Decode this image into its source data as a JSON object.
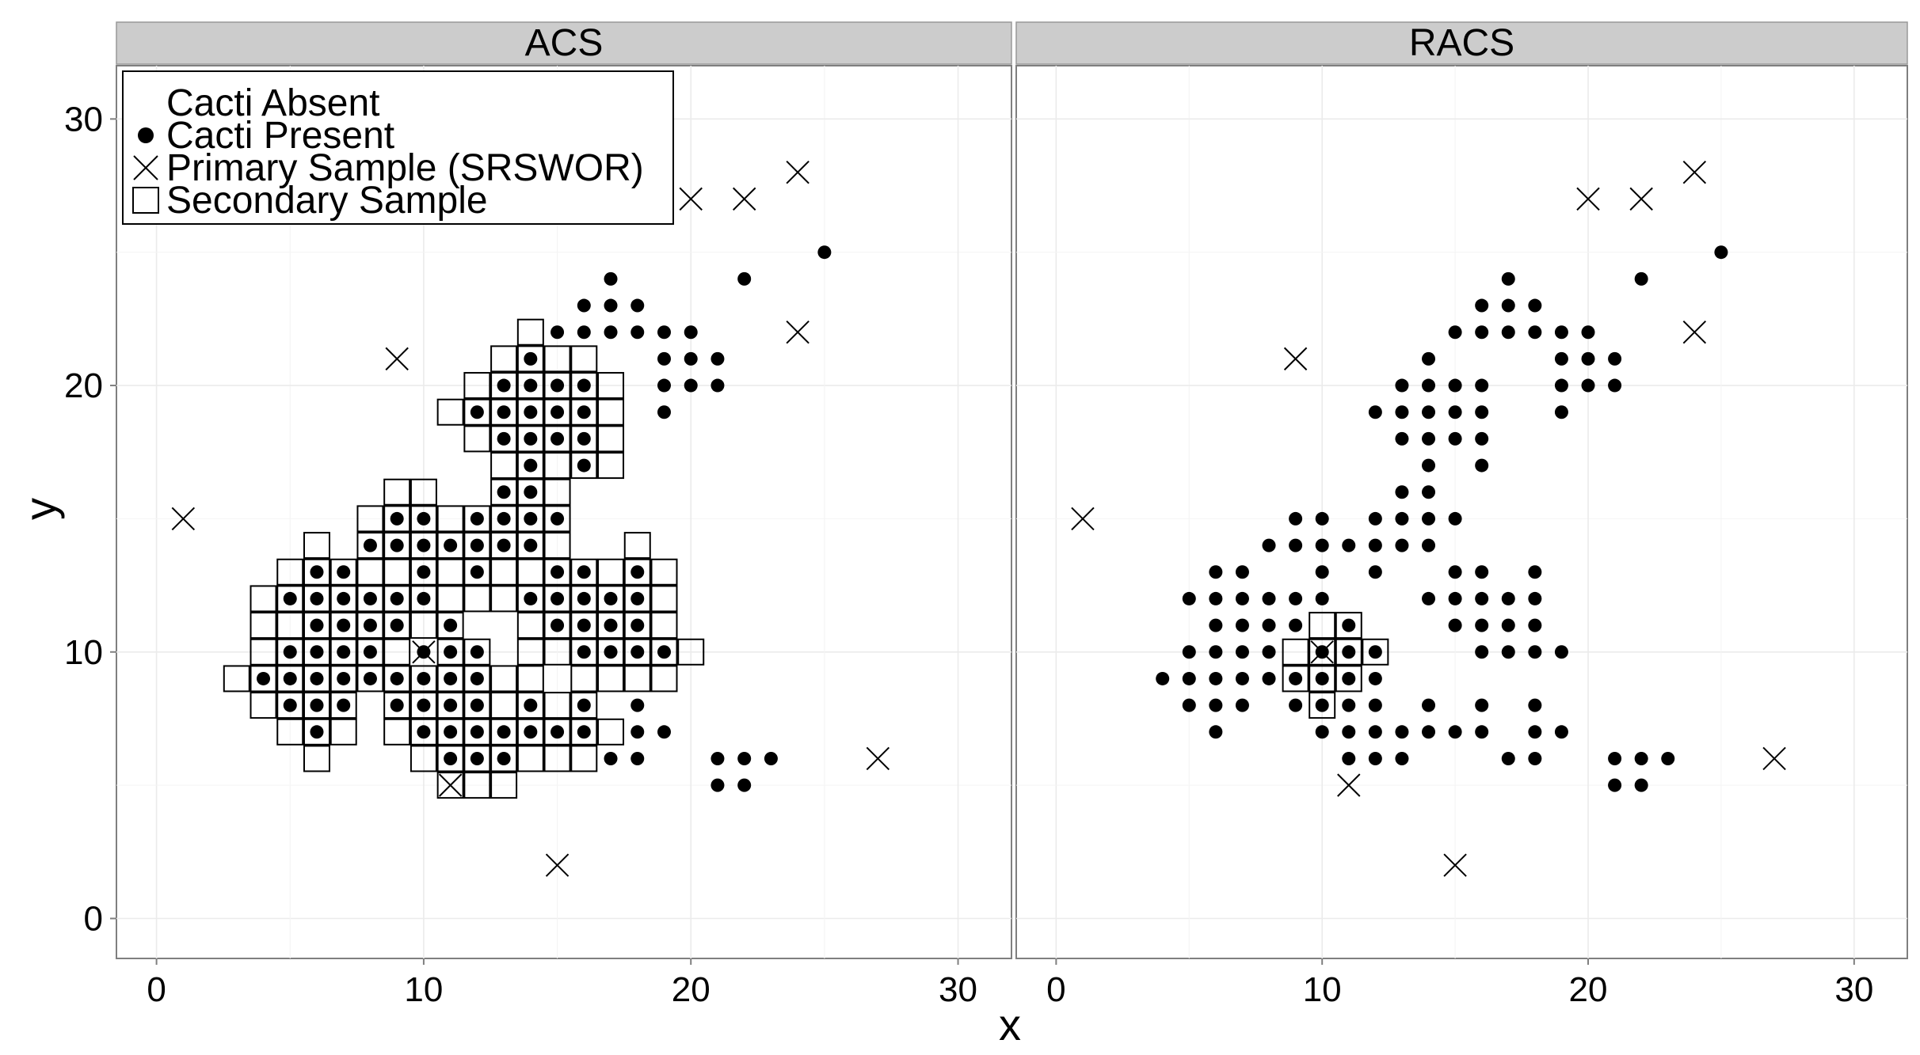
{
  "chart_data": {
    "type": "scatter",
    "facets": [
      "ACS",
      "RACS"
    ],
    "xlabel": "x",
    "ylabel": "y",
    "xlim": [
      -1.5,
      32
    ],
    "ylim": [
      -1.5,
      32
    ],
    "x_ticks": [
      0,
      10,
      20,
      30
    ],
    "y_ticks": [
      0,
      10,
      20,
      30
    ],
    "grid": true,
    "legend": {
      "placement": "top-left",
      "entries": [
        {
          "label": "Cacti Absent",
          "shape": "none"
        },
        {
          "label": "Cacti Present",
          "shape": "filled-circle"
        },
        {
          "label": "Primary Sample (SRSWOR)",
          "shape": "cross"
        },
        {
          "label": "Secondary Sample",
          "shape": "open-square"
        }
      ]
    },
    "cacti_present": [
      [
        4,
        9
      ],
      [
        5,
        8
      ],
      [
        5,
        9
      ],
      [
        5,
        10
      ],
      [
        5,
        12
      ],
      [
        6,
        7
      ],
      [
        6,
        8
      ],
      [
        6,
        9
      ],
      [
        6,
        10
      ],
      [
        6,
        11
      ],
      [
        6,
        12
      ],
      [
        6,
        13
      ],
      [
        7,
        8
      ],
      [
        7,
        9
      ],
      [
        7,
        10
      ],
      [
        7,
        11
      ],
      [
        7,
        12
      ],
      [
        7,
        13
      ],
      [
        8,
        9
      ],
      [
        8,
        10
      ],
      [
        8,
        11
      ],
      [
        8,
        12
      ],
      [
        8,
        14
      ],
      [
        9,
        8
      ],
      [
        9,
        9
      ],
      [
        9,
        11
      ],
      [
        9,
        12
      ],
      [
        9,
        14
      ],
      [
        9,
        15
      ],
      [
        10,
        7
      ],
      [
        10,
        8
      ],
      [
        10,
        9
      ],
      [
        10,
        10
      ],
      [
        10,
        12
      ],
      [
        10,
        13
      ],
      [
        10,
        14
      ],
      [
        10,
        15
      ],
      [
        11,
        6
      ],
      [
        11,
        7
      ],
      [
        11,
        8
      ],
      [
        11,
        9
      ],
      [
        11,
        10
      ],
      [
        11,
        11
      ],
      [
        11,
        14
      ],
      [
        12,
        6
      ],
      [
        12,
        7
      ],
      [
        12,
        8
      ],
      [
        12,
        9
      ],
      [
        12,
        10
      ],
      [
        12,
        13
      ],
      [
        12,
        14
      ],
      [
        12,
        15
      ],
      [
        12,
        19
      ],
      [
        13,
        6
      ],
      [
        13,
        7
      ],
      [
        13,
        14
      ],
      [
        13,
        15
      ],
      [
        13,
        16
      ],
      [
        13,
        18
      ],
      [
        13,
        19
      ],
      [
        13,
        20
      ],
      [
        14,
        7
      ],
      [
        14,
        8
      ],
      [
        14,
        12
      ],
      [
        14,
        14
      ],
      [
        14,
        15
      ],
      [
        14,
        16
      ],
      [
        14,
        17
      ],
      [
        14,
        18
      ],
      [
        14,
        19
      ],
      [
        14,
        20
      ],
      [
        14,
        21
      ],
      [
        15,
        7
      ],
      [
        15,
        11
      ],
      [
        15,
        12
      ],
      [
        15,
        13
      ],
      [
        15,
        15
      ],
      [
        15,
        18
      ],
      [
        15,
        19
      ],
      [
        15,
        20
      ],
      [
        15,
        22
      ],
      [
        16,
        7
      ],
      [
        16,
        8
      ],
      [
        16,
        10
      ],
      [
        16,
        11
      ],
      [
        16,
        12
      ],
      [
        16,
        13
      ],
      [
        16,
        17
      ],
      [
        16,
        18
      ],
      [
        16,
        19
      ],
      [
        16,
        20
      ],
      [
        16,
        22
      ],
      [
        16,
        23
      ],
      [
        17,
        6
      ],
      [
        17,
        10
      ],
      [
        17,
        11
      ],
      [
        17,
        12
      ],
      [
        17,
        22
      ],
      [
        17,
        23
      ],
      [
        17,
        24
      ],
      [
        18,
        6
      ],
      [
        18,
        7
      ],
      [
        18,
        8
      ],
      [
        18,
        10
      ],
      [
        18,
        11
      ],
      [
        18,
        12
      ],
      [
        18,
        13
      ],
      [
        18,
        22
      ],
      [
        18,
        23
      ],
      [
        19,
        7
      ],
      [
        19,
        10
      ],
      [
        19,
        19
      ],
      [
        19,
        20
      ],
      [
        19,
        21
      ],
      [
        19,
        22
      ],
      [
        20,
        20
      ],
      [
        20,
        21
      ],
      [
        20,
        22
      ],
      [
        21,
        5
      ],
      [
        21,
        6
      ],
      [
        21,
        20
      ],
      [
        21,
        21
      ],
      [
        22,
        5
      ],
      [
        22,
        6
      ],
      [
        22,
        24
      ],
      [
        23,
        6
      ],
      [
        25,
        25
      ]
    ],
    "primary_sample": [
      [
        1,
        15
      ],
      [
        9,
        21
      ],
      [
        10,
        10
      ],
      [
        11,
        5
      ],
      [
        15,
        2
      ],
      [
        20,
        27
      ],
      [
        22,
        27
      ],
      [
        24,
        28
      ],
      [
        24,
        22
      ],
      [
        27,
        6
      ]
    ],
    "secondary_sample": {
      "ACS": [
        [
          3,
          9
        ],
        [
          4,
          8
        ],
        [
          4,
          9
        ],
        [
          4,
          10
        ],
        [
          4,
          11
        ],
        [
          4,
          12
        ],
        [
          5,
          7
        ],
        [
          5,
          8
        ],
        [
          5,
          9
        ],
        [
          5,
          10
        ],
        [
          5,
          11
        ],
        [
          5,
          12
        ],
        [
          5,
          13
        ],
        [
          6,
          6
        ],
        [
          6,
          7
        ],
        [
          6,
          8
        ],
        [
          6,
          9
        ],
        [
          6,
          10
        ],
        [
          6,
          11
        ],
        [
          6,
          12
        ],
        [
          6,
          13
        ],
        [
          6,
          14
        ],
        [
          7,
          7
        ],
        [
          7,
          8
        ],
        [
          7,
          9
        ],
        [
          7,
          10
        ],
        [
          7,
          11
        ],
        [
          7,
          12
        ],
        [
          7,
          13
        ],
        [
          8,
          9
        ],
        [
          8,
          10
        ],
        [
          8,
          11
        ],
        [
          8,
          12
        ],
        [
          8,
          13
        ],
        [
          8,
          14
        ],
        [
          8,
          15
        ],
        [
          9,
          7
        ],
        [
          9,
          8
        ],
        [
          9,
          9
        ],
        [
          9,
          10
        ],
        [
          9,
          11
        ],
        [
          9,
          12
        ],
        [
          9,
          13
        ],
        [
          9,
          14
        ],
        [
          9,
          15
        ],
        [
          9,
          16
        ],
        [
          10,
          6
        ],
        [
          10,
          7
        ],
        [
          10,
          8
        ],
        [
          10,
          9
        ],
        [
          10,
          11
        ],
        [
          10,
          12
        ],
        [
          10,
          13
        ],
        [
          10,
          14
        ],
        [
          10,
          15
        ],
        [
          10,
          16
        ],
        [
          11,
          5
        ],
        [
          11,
          6
        ],
        [
          11,
          7
        ],
        [
          11,
          8
        ],
        [
          11,
          9
        ],
        [
          11,
          10
        ],
        [
          11,
          11
        ],
        [
          11,
          12
        ],
        [
          11,
          13
        ],
        [
          11,
          14
        ],
        [
          11,
          15
        ],
        [
          11,
          19
        ],
        [
          12,
          5
        ],
        [
          12,
          6
        ],
        [
          12,
          7
        ],
        [
          12,
          8
        ],
        [
          12,
          9
        ],
        [
          12,
          10
        ],
        [
          12,
          12
        ],
        [
          12,
          13
        ],
        [
          12,
          14
        ],
        [
          12,
          15
        ],
        [
          12,
          18
        ],
        [
          12,
          19
        ],
        [
          12,
          20
        ],
        [
          13,
          5
        ],
        [
          13,
          6
        ],
        [
          13,
          7
        ],
        [
          13,
          8
        ],
        [
          13,
          9
        ],
        [
          13,
          12
        ],
        [
          13,
          13
        ],
        [
          13,
          14
        ],
        [
          13,
          15
        ],
        [
          13,
          16
        ],
        [
          13,
          17
        ],
        [
          13,
          18
        ],
        [
          13,
          19
        ],
        [
          13,
          20
        ],
        [
          13,
          21
        ],
        [
          14,
          6
        ],
        [
          14,
          7
        ],
        [
          14,
          8
        ],
        [
          14,
          9
        ],
        [
          14,
          10
        ],
        [
          14,
          11
        ],
        [
          14,
          12
        ],
        [
          14,
          13
        ],
        [
          14,
          14
        ],
        [
          14,
          15
        ],
        [
          14,
          16
        ],
        [
          14,
          17
        ],
        [
          14,
          18
        ],
        [
          14,
          19
        ],
        [
          14,
          20
        ],
        [
          14,
          21
        ],
        [
          14,
          22
        ],
        [
          15,
          6
        ],
        [
          15,
          7
        ],
        [
          15,
          8
        ],
        [
          15,
          10
        ],
        [
          15,
          11
        ],
        [
          15,
          12
        ],
        [
          15,
          13
        ],
        [
          15,
          14
        ],
        [
          15,
          15
        ],
        [
          15,
          16
        ],
        [
          15,
          17
        ],
        [
          15,
          18
        ],
        [
          15,
          19
        ],
        [
          15,
          20
        ],
        [
          15,
          21
        ],
        [
          16,
          6
        ],
        [
          16,
          7
        ],
        [
          16,
          8
        ],
        [
          16,
          9
        ],
        [
          16,
          10
        ],
        [
          16,
          11
        ],
        [
          16,
          12
        ],
        [
          16,
          13
        ],
        [
          16,
          17
        ],
        [
          16,
          18
        ],
        [
          16,
          19
        ],
        [
          16,
          20
        ],
        [
          16,
          21
        ],
        [
          17,
          7
        ],
        [
          17,
          9
        ],
        [
          17,
          10
        ],
        [
          17,
          11
        ],
        [
          17,
          12
        ],
        [
          17,
          13
        ],
        [
          17,
          17
        ],
        [
          17,
          18
        ],
        [
          17,
          19
        ],
        [
          17,
          20
        ],
        [
          18,
          9
        ],
        [
          18,
          10
        ],
        [
          18,
          11
        ],
        [
          18,
          12
        ],
        [
          18,
          13
        ],
        [
          18,
          14
        ],
        [
          19,
          9
        ],
        [
          19,
          10
        ],
        [
          19,
          11
        ],
        [
          19,
          12
        ],
        [
          19,
          13
        ],
        [
          20,
          10
        ]
      ],
      "RACS": [
        [
          9,
          9
        ],
        [
          9,
          10
        ],
        [
          10,
          8
        ],
        [
          10,
          9
        ],
        [
          10,
          10
        ],
        [
          10,
          11
        ],
        [
          11,
          9
        ],
        [
          11,
          10
        ],
        [
          11,
          11
        ],
        [
          12,
          10
        ]
      ]
    }
  }
}
